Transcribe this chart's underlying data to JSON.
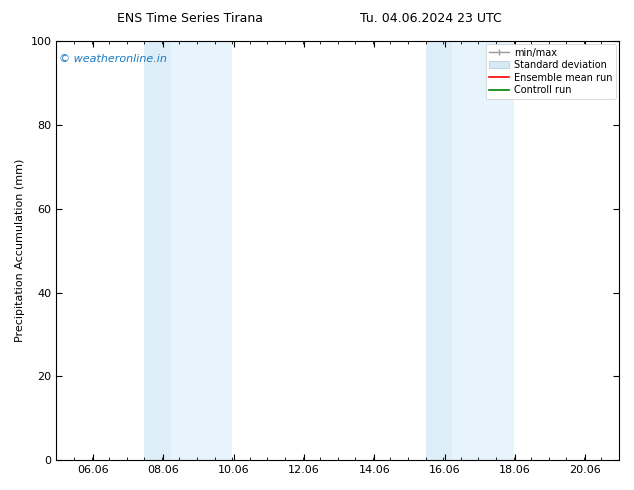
{
  "title_left": "ENS Time Series Tirana",
  "title_right": "Tu. 04.06.2024 23 UTC",
  "ylabel": "Precipitation Accumulation (mm)",
  "ylim": [
    0,
    100
  ],
  "yticks": [
    0,
    20,
    40,
    60,
    80,
    100
  ],
  "xtick_labels": [
    "06.06",
    "08.06",
    "10.06",
    "12.06",
    "14.06",
    "16.06",
    "18.06",
    "20.06"
  ],
  "tick_hours": [
    25,
    73,
    121,
    169,
    217,
    265,
    313,
    361
  ],
  "xlim": [
    0,
    384
  ],
  "shaded_bands": [
    {
      "x_start": 60,
      "x_end": 78,
      "color": "#ddeef9"
    },
    {
      "x_start": 78,
      "x_end": 120,
      "color": "#e8f4fc"
    },
    {
      "x_start": 252,
      "x_end": 270,
      "color": "#ddeef9"
    },
    {
      "x_start": 270,
      "x_end": 312,
      "color": "#e8f4fc"
    }
  ],
  "watermark_text": "© weatheronline.in",
  "watermark_color": "#1a7abf",
  "background_color": "#ffffff",
  "legend_items": [
    {
      "label": "min/max"
    },
    {
      "label": "Standard deviation"
    },
    {
      "label": "Ensemble mean run"
    },
    {
      "label": "Controll run"
    }
  ],
  "legend_colors": [
    "#999999",
    "#c8dcea",
    "#ff0000",
    "#008000"
  ],
  "title_fontsize": 9,
  "axis_fontsize": 8,
  "ylabel_fontsize": 8
}
